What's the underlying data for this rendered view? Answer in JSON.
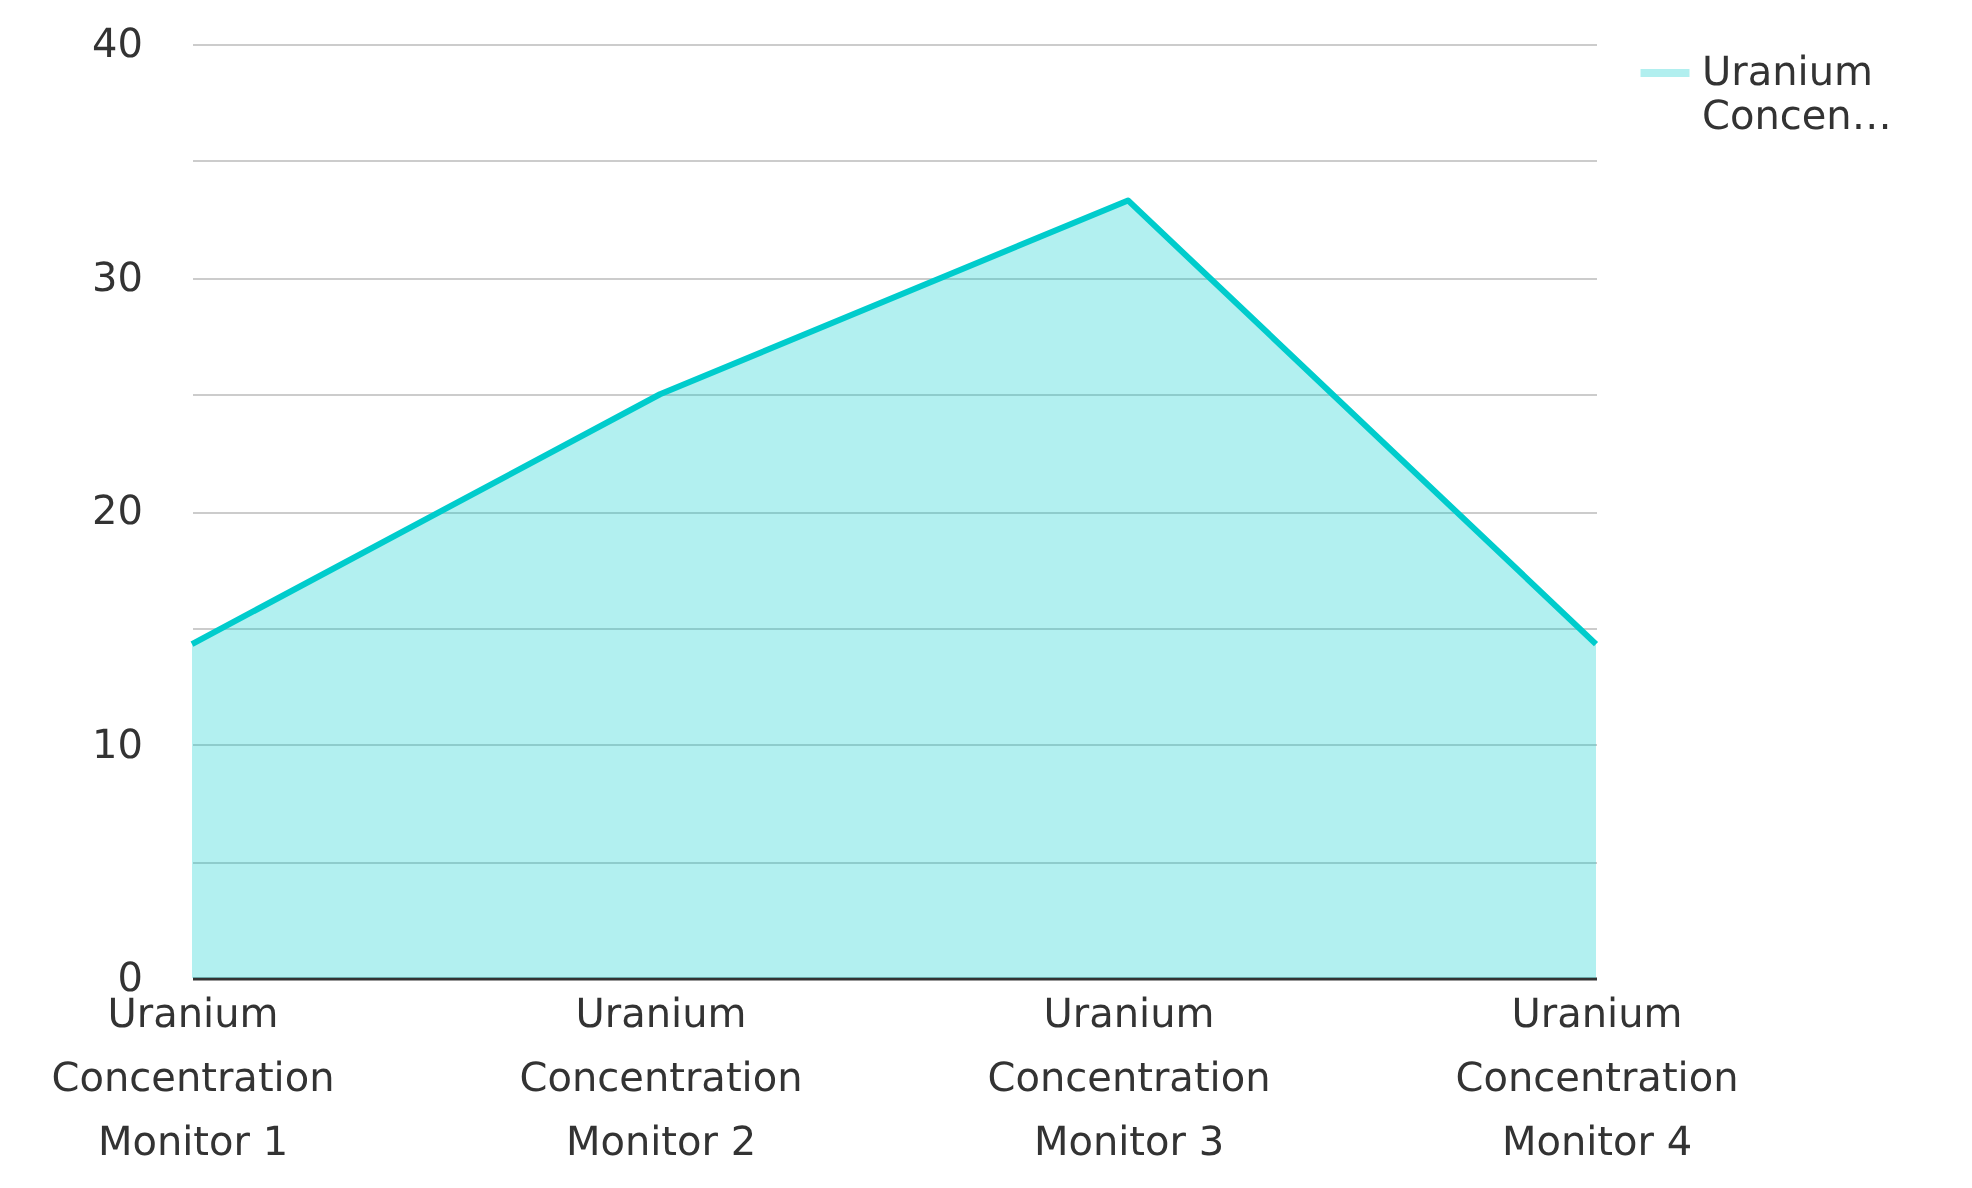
{
  "chart_data": {
    "type": "area",
    "categories": [
      "Uranium Concentration Monitor 1",
      "Uranium Concentration Monitor 2",
      "Uranium Concentration Monitor 3",
      "Uranium Concentration Monitor 4"
    ],
    "series": [
      {
        "name": "Uranium Concen…",
        "color": "#00cccc",
        "values": [
          14.3,
          25.0,
          33.3,
          14.3
        ]
      }
    ],
    "ylim": [
      0,
      40
    ],
    "yticks": [
      0,
      {
        "value": 5,
        "label": null
      },
      10,
      {
        "value": 15,
        "label": null
      },
      20,
      {
        "value": 25,
        "label": null
      },
      30,
      {
        "value": 35,
        "label": null
      },
      40
    ],
    "grid": "y",
    "legend": "top right"
  }
}
